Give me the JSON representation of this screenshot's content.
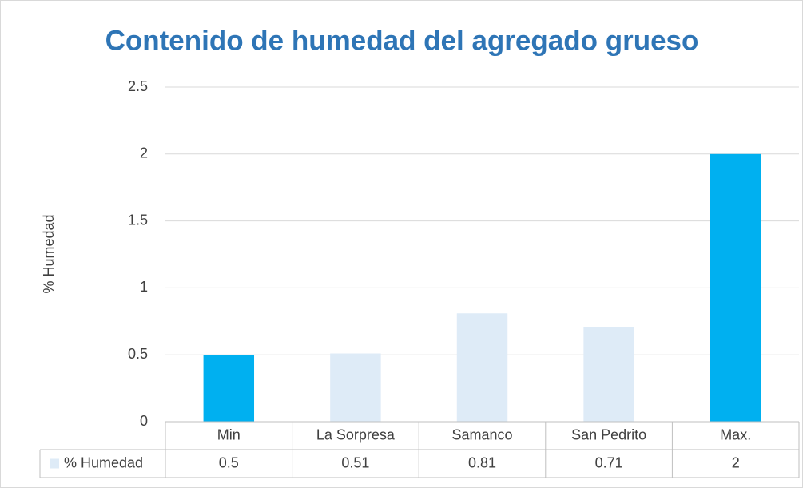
{
  "chart_data": {
    "type": "bar",
    "title": "Contenido de humedad del agregado grueso",
    "y_label": "% Humedad",
    "categories": [
      "Min",
      "La Sorpresa",
      "Samanco",
      "San Pedrito",
      "Max."
    ],
    "series": [
      {
        "name": "% Humedad",
        "color": "#deebf7",
        "point_colors": [
          "#00b0f0",
          "#deebf7",
          "#deebf7",
          "#deebf7",
          "#00b0f0"
        ],
        "values": [
          0.5,
          0.51,
          0.81,
          0.71,
          2
        ]
      }
    ],
    "ylim": [
      0,
      2.5
    ],
    "yticks": [
      0,
      0.5,
      1,
      1.5,
      2,
      2.5
    ],
    "grid": true,
    "data_table": true
  }
}
